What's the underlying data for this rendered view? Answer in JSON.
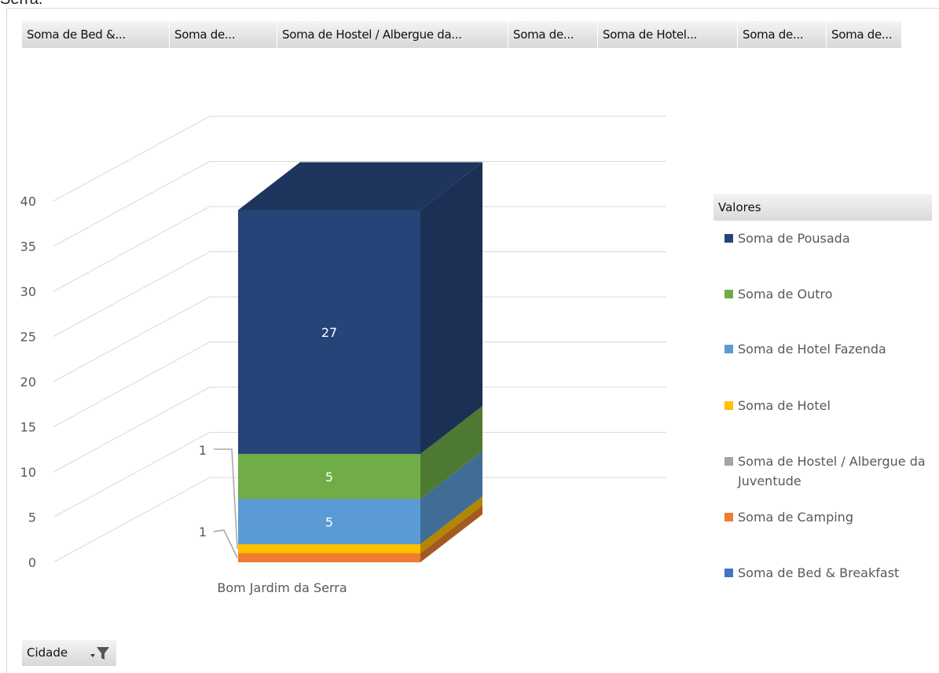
{
  "page": {
    "cut_off_title": "Serra."
  },
  "field_buttons": [
    {
      "label": "Soma de Bed &..."
    },
    {
      "label": "Soma de..."
    },
    {
      "label": "Soma de Hostel / Albergue da..."
    },
    {
      "label": "Soma de..."
    },
    {
      "label": "Soma de Hotel..."
    },
    {
      "label": "Soma de..."
    },
    {
      "label": "Soma de..."
    }
  ],
  "legend": {
    "title": "Valores",
    "items": [
      {
        "label": "Soma de Pousada",
        "color": "#264478"
      },
      {
        "label": "Soma de Outro",
        "color": "#70ad47"
      },
      {
        "label": "Soma de Hotel Fazenda",
        "color": "#5b9bd5"
      },
      {
        "label": "Soma de Hotel",
        "color": "#ffc000"
      },
      {
        "label": "Soma de Hostel / Albergue da Juventude",
        "color": "#a5a5a5"
      },
      {
        "label": "Soma de Camping",
        "color": "#ed7d31"
      },
      {
        "label": "Soma de Bed & Breakfast",
        "color": "#4472c4"
      }
    ]
  },
  "axis_filter": {
    "label": "Cidade",
    "icon": "filter-dropdown-icon"
  },
  "chart_data": {
    "type": "bar",
    "stacked": true,
    "three_d": true,
    "categories": [
      "Bom Jardim da Serra"
    ],
    "series": [
      {
        "name": "Soma de Bed & Breakfast",
        "values": [
          0
        ],
        "color": "#4472c4"
      },
      {
        "name": "Soma de Camping",
        "values": [
          1
        ],
        "color": "#ed7d31",
        "data_label": "1"
      },
      {
        "name": "Soma de Hostel / Albergue da Juventude",
        "values": [
          0
        ],
        "color": "#a5a5a5"
      },
      {
        "name": "Soma de Hotel",
        "values": [
          1
        ],
        "color": "#ffc000",
        "data_label": "1"
      },
      {
        "name": "Soma de Hotel Fazenda",
        "values": [
          5
        ],
        "color": "#5b9bd5",
        "data_label": "5"
      },
      {
        "name": "Soma de Outro",
        "values": [
          5
        ],
        "color": "#70ad47",
        "data_label": "5"
      },
      {
        "name": "Soma de Pousada",
        "values": [
          27
        ],
        "color": "#264478",
        "data_label": "27"
      }
    ],
    "y_ticks": [
      0,
      5,
      10,
      15,
      20,
      25,
      30,
      35,
      40
    ],
    "ylim": [
      0,
      40
    ],
    "grid": true,
    "legend_position": "right",
    "title": "",
    "xlabel": "",
    "ylabel": ""
  }
}
